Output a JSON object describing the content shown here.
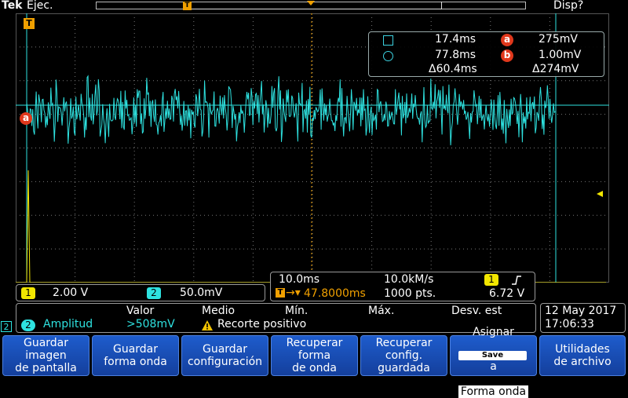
{
  "top": {
    "brand": "Tek",
    "run_state": "Ejec.",
    "display_menu": "Disp?",
    "trigger_marker": "T"
  },
  "markers": {
    "trigger_pos": "T",
    "cursor_a": "a",
    "channel2": "2"
  },
  "cursors": {
    "square_time": "17.4ms",
    "a_label": "a",
    "a_value": "275mV",
    "circle_time": "77.8ms",
    "b_label": "b",
    "b_value": "1.00mV",
    "delta_time": "Δ60.4ms",
    "delta_value": "Δ274mV"
  },
  "channels": {
    "ch1_num": "1",
    "ch1_scale": "2.00 V",
    "ch2_num": "2",
    "ch2_scale": "50.0mV"
  },
  "horizontal": {
    "time_div": "10.0ms",
    "sample_rate": "10.0kM/s",
    "trig_source": "1",
    "trig_level": "6.72 V",
    "trig_pos_badge": "T",
    "position": "47.8000ms",
    "record_length": "1000 pts."
  },
  "measurement": {
    "col_valor": "Valor",
    "col_medio": "Medio",
    "col_min": "Mín.",
    "col_max": "Máx.",
    "col_desv": "Desv. est",
    "channel": "2",
    "name": "Amplitud",
    "value": ">508mV",
    "warning": "Recorte positivo"
  },
  "datetime": {
    "date": "12 May 2017",
    "time": "17:06:33"
  },
  "softkeys": [
    "Guardar\nimagen\nde pantalla",
    "Guardar\nforma onda",
    "Guardar\nconfiguración",
    "Recuperar\nforma\nde onda",
    "Recuperar\nconfig.\nguardada",
    "Asignar",
    "Utilidades\nde archivo"
  ],
  "assign_save_chip": "Save",
  "assign_a": "a",
  "assign_line3": "Forma onda",
  "colors": {
    "ch1": "#f2e600",
    "ch2": "#2ee2e0",
    "trigger": "#f0a000",
    "cursor": "#e0381c",
    "softkey": "#1e5ccc"
  }
}
